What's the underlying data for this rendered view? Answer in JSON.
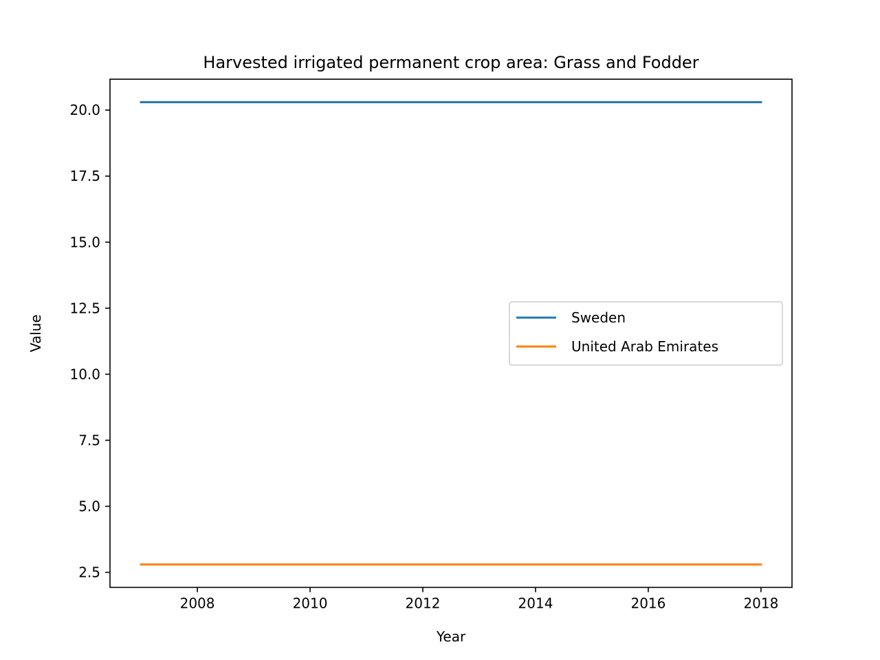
{
  "chart_data": {
    "type": "line",
    "title": "Harvested irrigated permanent crop area: Grass and Fodder",
    "xlabel": "Year",
    "ylabel": "Value",
    "x": [
      2007,
      2008,
      2009,
      2010,
      2011,
      2012,
      2013,
      2014,
      2015,
      2016,
      2017,
      2018
    ],
    "series": [
      {
        "name": "Sweden",
        "color": "#1f77b4",
        "values": [
          20.3,
          20.3,
          20.3,
          20.3,
          20.3,
          20.3,
          20.3,
          20.3,
          20.3,
          20.3,
          20.3,
          20.3
        ]
      },
      {
        "name": "United Arab Emirates",
        "color": "#ff7f0e",
        "values": [
          2.8,
          2.8,
          2.8,
          2.8,
          2.8,
          2.8,
          2.8,
          2.8,
          2.8,
          2.8,
          2.8,
          2.8
        ]
      }
    ],
    "xlim": [
      2006.45,
      2018.55
    ],
    "ylim": [
      1.93,
      21.17
    ],
    "xticks": [
      2008,
      2010,
      2012,
      2014,
      2016,
      2018
    ],
    "xtick_labels": [
      "2008",
      "2010",
      "2012",
      "2014",
      "2016",
      "2018"
    ],
    "yticks": [
      2.5,
      5.0,
      7.5,
      10.0,
      12.5,
      15.0,
      17.5,
      20.0
    ],
    "ytick_labels": [
      "2.5",
      "5.0",
      "7.5",
      "10.0",
      "12.5",
      "15.0",
      "17.5",
      "20.0"
    ],
    "grid": false,
    "legend_position": "center-right"
  }
}
